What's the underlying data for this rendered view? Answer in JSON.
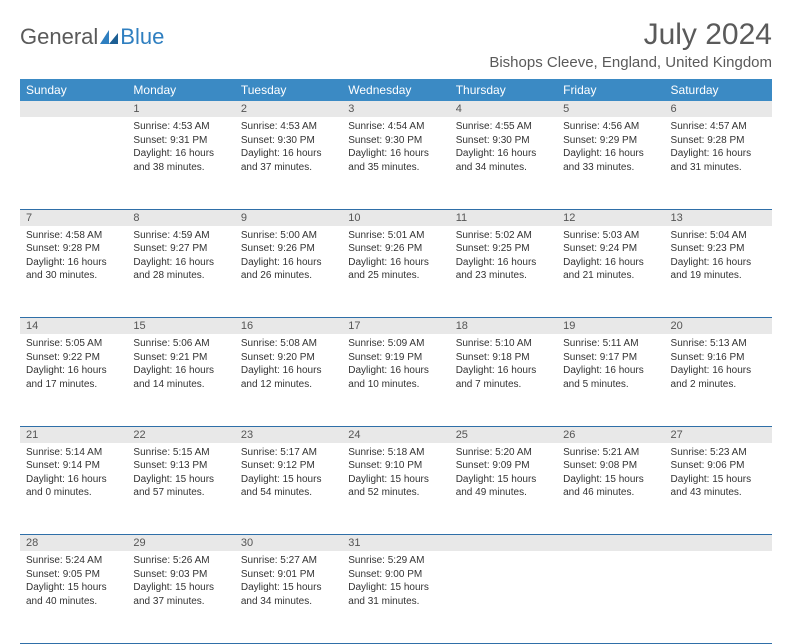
{
  "brand": {
    "name1": "General",
    "name2": "Blue",
    "shape_color": "#2f7fc0"
  },
  "title": "July 2024",
  "location": "Bishops Cleeve, England, United Kingdom",
  "colors": {
    "header_bg": "#3b8ac4",
    "header_text": "#ffffff",
    "daynum_bg": "#e8e8e8",
    "border": "#2f6fa8",
    "text": "#333333"
  },
  "day_labels": [
    "Sunday",
    "Monday",
    "Tuesday",
    "Wednesday",
    "Thursday",
    "Friday",
    "Saturday"
  ],
  "weeks": [
    [
      null,
      {
        "n": "1",
        "sr": "Sunrise: 4:53 AM",
        "ss": "Sunset: 9:31 PM",
        "dl": "Daylight: 16 hours and 38 minutes."
      },
      {
        "n": "2",
        "sr": "Sunrise: 4:53 AM",
        "ss": "Sunset: 9:30 PM",
        "dl": "Daylight: 16 hours and 37 minutes."
      },
      {
        "n": "3",
        "sr": "Sunrise: 4:54 AM",
        "ss": "Sunset: 9:30 PM",
        "dl": "Daylight: 16 hours and 35 minutes."
      },
      {
        "n": "4",
        "sr": "Sunrise: 4:55 AM",
        "ss": "Sunset: 9:30 PM",
        "dl": "Daylight: 16 hours and 34 minutes."
      },
      {
        "n": "5",
        "sr": "Sunrise: 4:56 AM",
        "ss": "Sunset: 9:29 PM",
        "dl": "Daylight: 16 hours and 33 minutes."
      },
      {
        "n": "6",
        "sr": "Sunrise: 4:57 AM",
        "ss": "Sunset: 9:28 PM",
        "dl": "Daylight: 16 hours and 31 minutes."
      }
    ],
    [
      {
        "n": "7",
        "sr": "Sunrise: 4:58 AM",
        "ss": "Sunset: 9:28 PM",
        "dl": "Daylight: 16 hours and 30 minutes."
      },
      {
        "n": "8",
        "sr": "Sunrise: 4:59 AM",
        "ss": "Sunset: 9:27 PM",
        "dl": "Daylight: 16 hours and 28 minutes."
      },
      {
        "n": "9",
        "sr": "Sunrise: 5:00 AM",
        "ss": "Sunset: 9:26 PM",
        "dl": "Daylight: 16 hours and 26 minutes."
      },
      {
        "n": "10",
        "sr": "Sunrise: 5:01 AM",
        "ss": "Sunset: 9:26 PM",
        "dl": "Daylight: 16 hours and 25 minutes."
      },
      {
        "n": "11",
        "sr": "Sunrise: 5:02 AM",
        "ss": "Sunset: 9:25 PM",
        "dl": "Daylight: 16 hours and 23 minutes."
      },
      {
        "n": "12",
        "sr": "Sunrise: 5:03 AM",
        "ss": "Sunset: 9:24 PM",
        "dl": "Daylight: 16 hours and 21 minutes."
      },
      {
        "n": "13",
        "sr": "Sunrise: 5:04 AM",
        "ss": "Sunset: 9:23 PM",
        "dl": "Daylight: 16 hours and 19 minutes."
      }
    ],
    [
      {
        "n": "14",
        "sr": "Sunrise: 5:05 AM",
        "ss": "Sunset: 9:22 PM",
        "dl": "Daylight: 16 hours and 17 minutes."
      },
      {
        "n": "15",
        "sr": "Sunrise: 5:06 AM",
        "ss": "Sunset: 9:21 PM",
        "dl": "Daylight: 16 hours and 14 minutes."
      },
      {
        "n": "16",
        "sr": "Sunrise: 5:08 AM",
        "ss": "Sunset: 9:20 PM",
        "dl": "Daylight: 16 hours and 12 minutes."
      },
      {
        "n": "17",
        "sr": "Sunrise: 5:09 AM",
        "ss": "Sunset: 9:19 PM",
        "dl": "Daylight: 16 hours and 10 minutes."
      },
      {
        "n": "18",
        "sr": "Sunrise: 5:10 AM",
        "ss": "Sunset: 9:18 PM",
        "dl": "Daylight: 16 hours and 7 minutes."
      },
      {
        "n": "19",
        "sr": "Sunrise: 5:11 AM",
        "ss": "Sunset: 9:17 PM",
        "dl": "Daylight: 16 hours and 5 minutes."
      },
      {
        "n": "20",
        "sr": "Sunrise: 5:13 AM",
        "ss": "Sunset: 9:16 PM",
        "dl": "Daylight: 16 hours and 2 minutes."
      }
    ],
    [
      {
        "n": "21",
        "sr": "Sunrise: 5:14 AM",
        "ss": "Sunset: 9:14 PM",
        "dl": "Daylight: 16 hours and 0 minutes."
      },
      {
        "n": "22",
        "sr": "Sunrise: 5:15 AM",
        "ss": "Sunset: 9:13 PM",
        "dl": "Daylight: 15 hours and 57 minutes."
      },
      {
        "n": "23",
        "sr": "Sunrise: 5:17 AM",
        "ss": "Sunset: 9:12 PM",
        "dl": "Daylight: 15 hours and 54 minutes."
      },
      {
        "n": "24",
        "sr": "Sunrise: 5:18 AM",
        "ss": "Sunset: 9:10 PM",
        "dl": "Daylight: 15 hours and 52 minutes."
      },
      {
        "n": "25",
        "sr": "Sunrise: 5:20 AM",
        "ss": "Sunset: 9:09 PM",
        "dl": "Daylight: 15 hours and 49 minutes."
      },
      {
        "n": "26",
        "sr": "Sunrise: 5:21 AM",
        "ss": "Sunset: 9:08 PM",
        "dl": "Daylight: 15 hours and 46 minutes."
      },
      {
        "n": "27",
        "sr": "Sunrise: 5:23 AM",
        "ss": "Sunset: 9:06 PM",
        "dl": "Daylight: 15 hours and 43 minutes."
      }
    ],
    [
      {
        "n": "28",
        "sr": "Sunrise: 5:24 AM",
        "ss": "Sunset: 9:05 PM",
        "dl": "Daylight: 15 hours and 40 minutes."
      },
      {
        "n": "29",
        "sr": "Sunrise: 5:26 AM",
        "ss": "Sunset: 9:03 PM",
        "dl": "Daylight: 15 hours and 37 minutes."
      },
      {
        "n": "30",
        "sr": "Sunrise: 5:27 AM",
        "ss": "Sunset: 9:01 PM",
        "dl": "Daylight: 15 hours and 34 minutes."
      },
      {
        "n": "31",
        "sr": "Sunrise: 5:29 AM",
        "ss": "Sunset: 9:00 PM",
        "dl": "Daylight: 15 hours and 31 minutes."
      },
      null,
      null,
      null
    ]
  ]
}
